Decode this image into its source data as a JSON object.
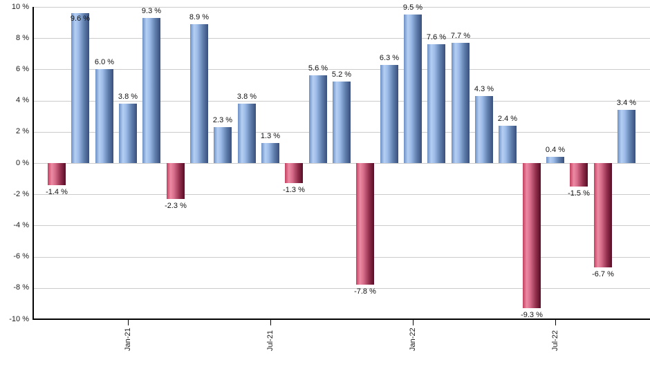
{
  "chart_data": {
    "type": "bar",
    "title": "",
    "xlabel": "",
    "ylabel": "",
    "unit": "%",
    "grid": true,
    "legend": "none",
    "y_axis": {
      "min": -10,
      "max": 10,
      "tick_step": 2,
      "tick_labels": [
        "10 %",
        "8 %",
        "6 %",
        "4 %",
        "2 %",
        "0 %",
        "-2 %",
        "-4 %",
        "-6 %",
        "-8 %",
        "-10 %"
      ]
    },
    "x_axis": {
      "tick_labels": [
        "Jan-21",
        "Jul-21",
        "Jan-22",
        "Jul-22"
      ],
      "tick_bar_indices": [
        3,
        9,
        15,
        21
      ]
    },
    "values": [
      -1.4,
      9.6,
      6.0,
      3.8,
      9.3,
      -2.3,
      8.9,
      2.3,
      3.8,
      1.3,
      -1.3,
      5.6,
      5.2,
      -7.8,
      6.3,
      9.5,
      7.6,
      7.7,
      4.3,
      2.4,
      -9.3,
      0.4,
      -1.5,
      -6.7,
      3.4
    ],
    "value_labels": [
      "-1.4 %",
      "9.6 %",
      "6.0 %",
      "3.8 %",
      "9.3 %",
      "-2.3 %",
      "8.9 %",
      "2.3 %",
      "3.8 %",
      "1.3 %",
      "-1.3 %",
      "5.6 %",
      "5.2 %",
      "-7.8 %",
      "6.3 %",
      "9.5 %",
      "7.6 %",
      "7.7 %",
      "4.3 %",
      "2.4 %",
      "-9.3 %",
      "0.4 %",
      "-1.5 %",
      "-6.7 %",
      "3.4 %"
    ],
    "colors": {
      "positive_bar_light": "#b5cff3",
      "positive_bar_dark": "#394f7d",
      "positive_bar_edge": "#6d8fc3",
      "negative_bar_light": "#ec8ba4",
      "negative_bar_dark": "#570d26",
      "negative_bar_edge": "#c23f60",
      "gridline": "#cbcbcb",
      "axis": "#000000",
      "text": "#1a1a1a"
    }
  }
}
